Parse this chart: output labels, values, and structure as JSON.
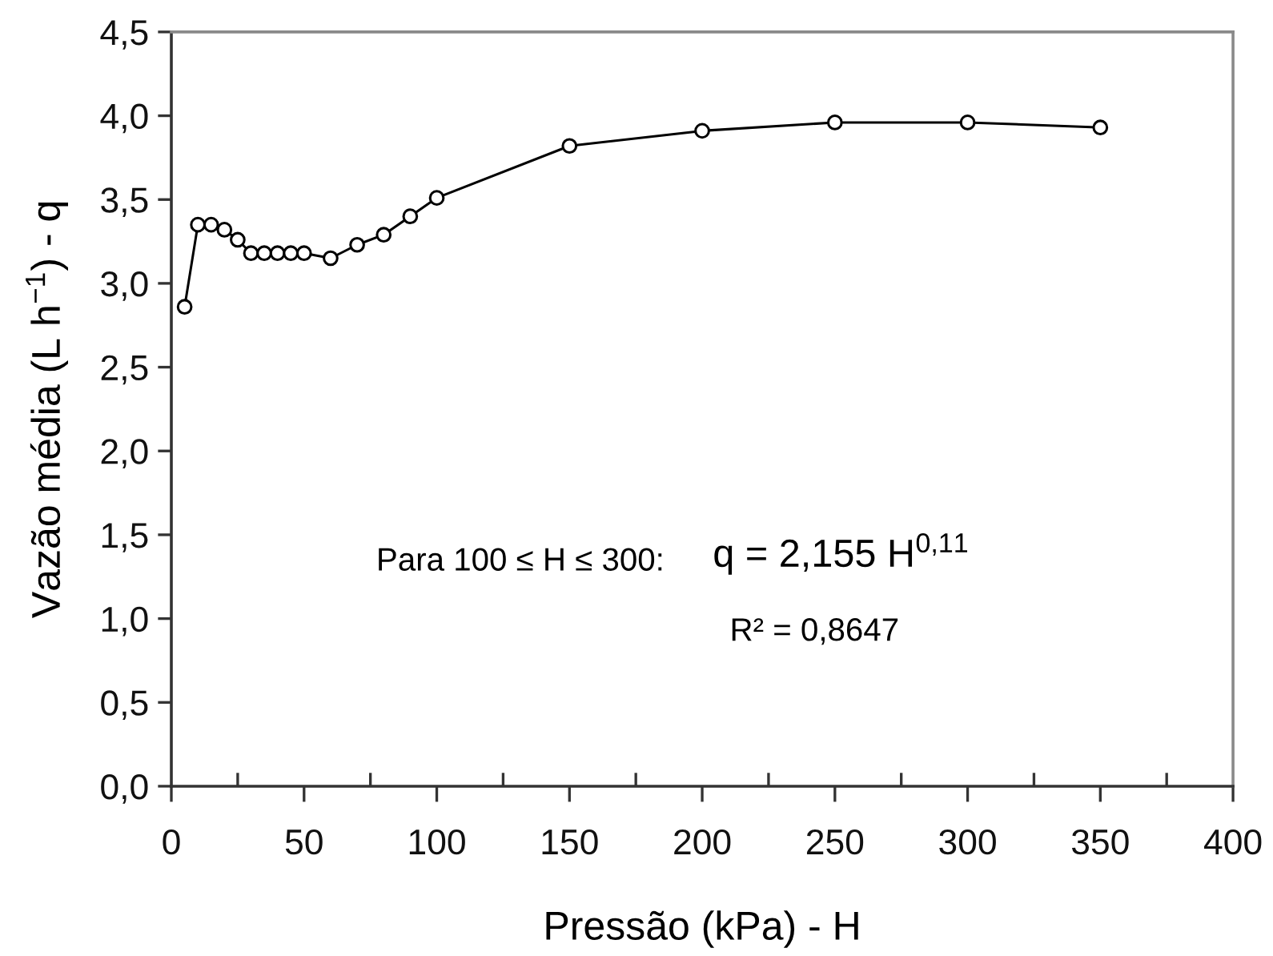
{
  "chart_data": {
    "type": "line",
    "xlabel": "Pressão (kPa) - H",
    "ylabel": "Vazão média (L h$^{−1}$) - q",
    "x": [
      5,
      10,
      15,
      20,
      25,
      30,
      35,
      40,
      45,
      50,
      60,
      70,
      80,
      90,
      100,
      150,
      200,
      250,
      300,
      350
    ],
    "values": [
      2.86,
      3.35,
      3.35,
      3.32,
      3.26,
      3.18,
      3.18,
      3.18,
      3.18,
      3.18,
      3.15,
      3.23,
      3.29,
      3.4,
      3.51,
      3.82,
      3.91,
      3.96,
      3.96,
      3.93
    ],
    "color": "#000000",
    "marker": "circle",
    "line_style": "solid",
    "xlim": [
      0,
      400
    ],
    "xticks": [
      0,
      {
        "value": 25,
        "label": null
      },
      50,
      {
        "value": 75,
        "label": null
      },
      100,
      {
        "value": 125,
        "label": null
      },
      150,
      {
        "value": 175,
        "label": null
      },
      200,
      {
        "value": 225,
        "label": null
      },
      250,
      {
        "value": 275,
        "label": null
      },
      300,
      {
        "value": 325,
        "label": null
      },
      350,
      {
        "value": 375,
        "label": null
      },
      400
    ],
    "ylim": [
      0,
      4.5
    ],
    "yticks": [
      {
        "value": 0,
        "label": "0,0"
      },
      {
        "value": 0.5,
        "label": "0,5"
      },
      {
        "value": 1,
        "label": "1,0"
      },
      {
        "value": 1.5,
        "label": "1,5"
      },
      {
        "value": 2,
        "label": "2,0"
      },
      {
        "value": 2.5,
        "label": "2,5"
      },
      {
        "value": 3,
        "label": "3,0"
      },
      {
        "value": 3.5,
        "label": "3,5"
      },
      {
        "value": 4,
        "label": "4,0"
      },
      {
        "value": 4.5,
        "label": "4,5"
      }
    ],
    "annotations": [
      "Para 100 ≤ H ≤ 300:",
      "q = 2,155 H$^{0,11}$",
      "R² = 0,8647"
    ]
  }
}
